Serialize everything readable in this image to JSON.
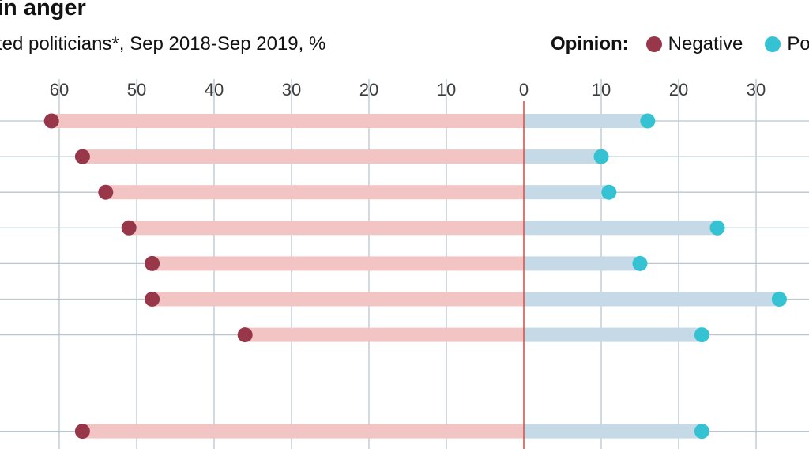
{
  "header": {
    "title": "in anger",
    "subtitle": "ted politicians*, Sep 2018-Sep 2019, %"
  },
  "legend": {
    "title": "Opinion:",
    "items": [
      {
        "label": "Negative",
        "color": "#98374a"
      },
      {
        "label": "Posi",
        "color": "#35c3d4"
      }
    ]
  },
  "chart_data": {
    "type": "bar",
    "title": "in anger",
    "subtitle": "ted politicians*, Sep 2018-Sep 2019, %",
    "xlabel": "",
    "ylabel": "",
    "tick_labels": [
      "60",
      "50",
      "40",
      "30",
      "20",
      "10",
      "0",
      "10",
      "20",
      "30"
    ],
    "x_ticks": [
      -60,
      -50,
      -40,
      -30,
      -20,
      -10,
      0,
      10,
      20,
      30
    ],
    "xlim": [
      -67,
      37
    ],
    "grid": true,
    "legend_position": "top-right",
    "series": [
      {
        "name": "Negative",
        "values": [
          61,
          57,
          54,
          51,
          48,
          48,
          36,
          57
        ],
        "color": "#98374a",
        "bar_color": "#f2c4c4"
      },
      {
        "name": "Posi",
        "values": [
          16,
          10,
          11,
          25,
          15,
          33,
          23,
          23
        ],
        "color": "#35c3d4",
        "bar_color": "#c5d9e6"
      }
    ],
    "groups": [
      7,
      1
    ]
  }
}
